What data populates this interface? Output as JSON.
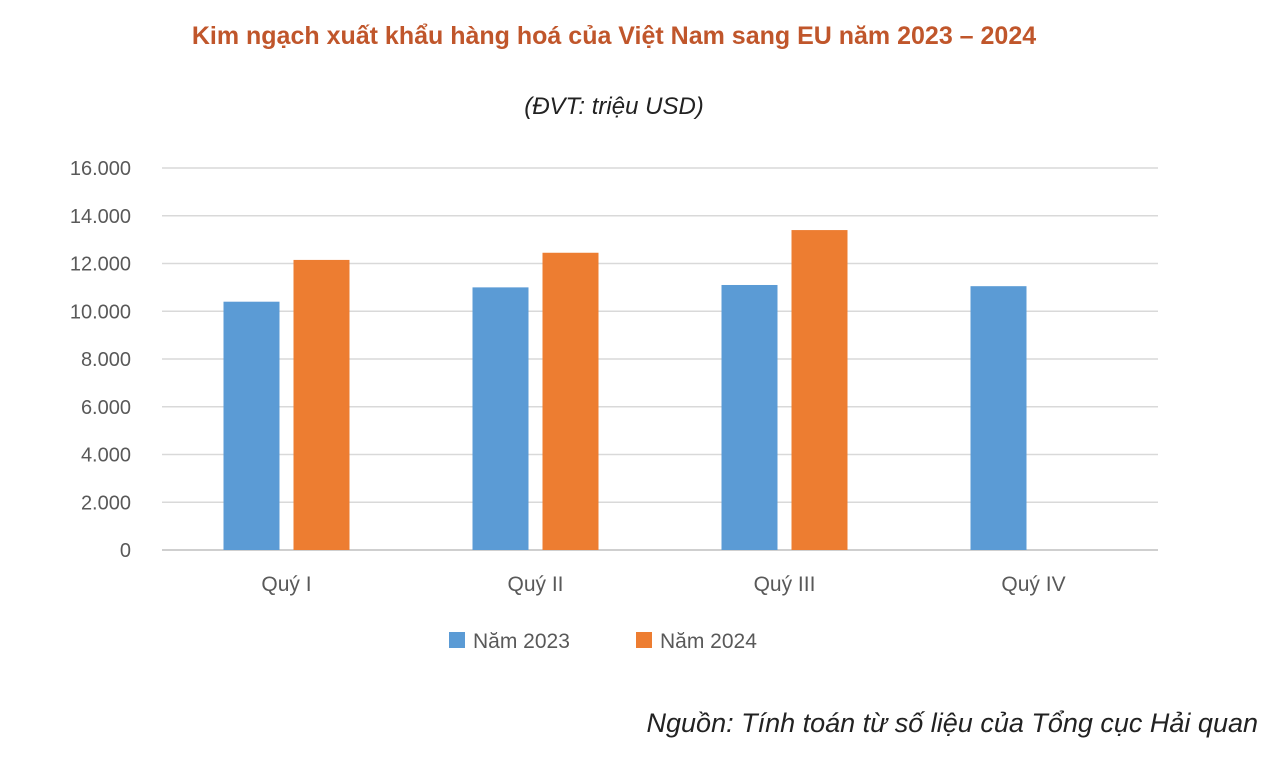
{
  "chart_data": {
    "type": "bar",
    "title": "Kim ngạch xuất khẩu hàng hoá của Việt Nam sang EU năm 2023 – 2024",
    "subtitle": "(ĐVT: triệu USD)",
    "categories": [
      "Quý I",
      "Quý II",
      "Quý III",
      "Quý IV"
    ],
    "series": [
      {
        "name": "Năm 2023",
        "color": "#5b9bd5",
        "values": [
          10400,
          11000,
          11100,
          11050
        ]
      },
      {
        "name": "Năm 2024",
        "color": "#ed7d31",
        "values": [
          12150,
          12450,
          13400,
          null
        ]
      }
    ],
    "ylim": [
      0,
      16000
    ],
    "yticks": [
      0,
      2000,
      4000,
      6000,
      8000,
      10000,
      12000,
      14000,
      16000
    ],
    "ytick_labels": [
      "0",
      "2.000",
      "4.000",
      "6.000",
      "8.000",
      "10.000",
      "12.000",
      "14.000",
      "16.000"
    ],
    "grid": true,
    "legend_position": "bottom",
    "source": "Nguồn: Tính toán từ số liệu của Tổng cục Hải quan"
  }
}
